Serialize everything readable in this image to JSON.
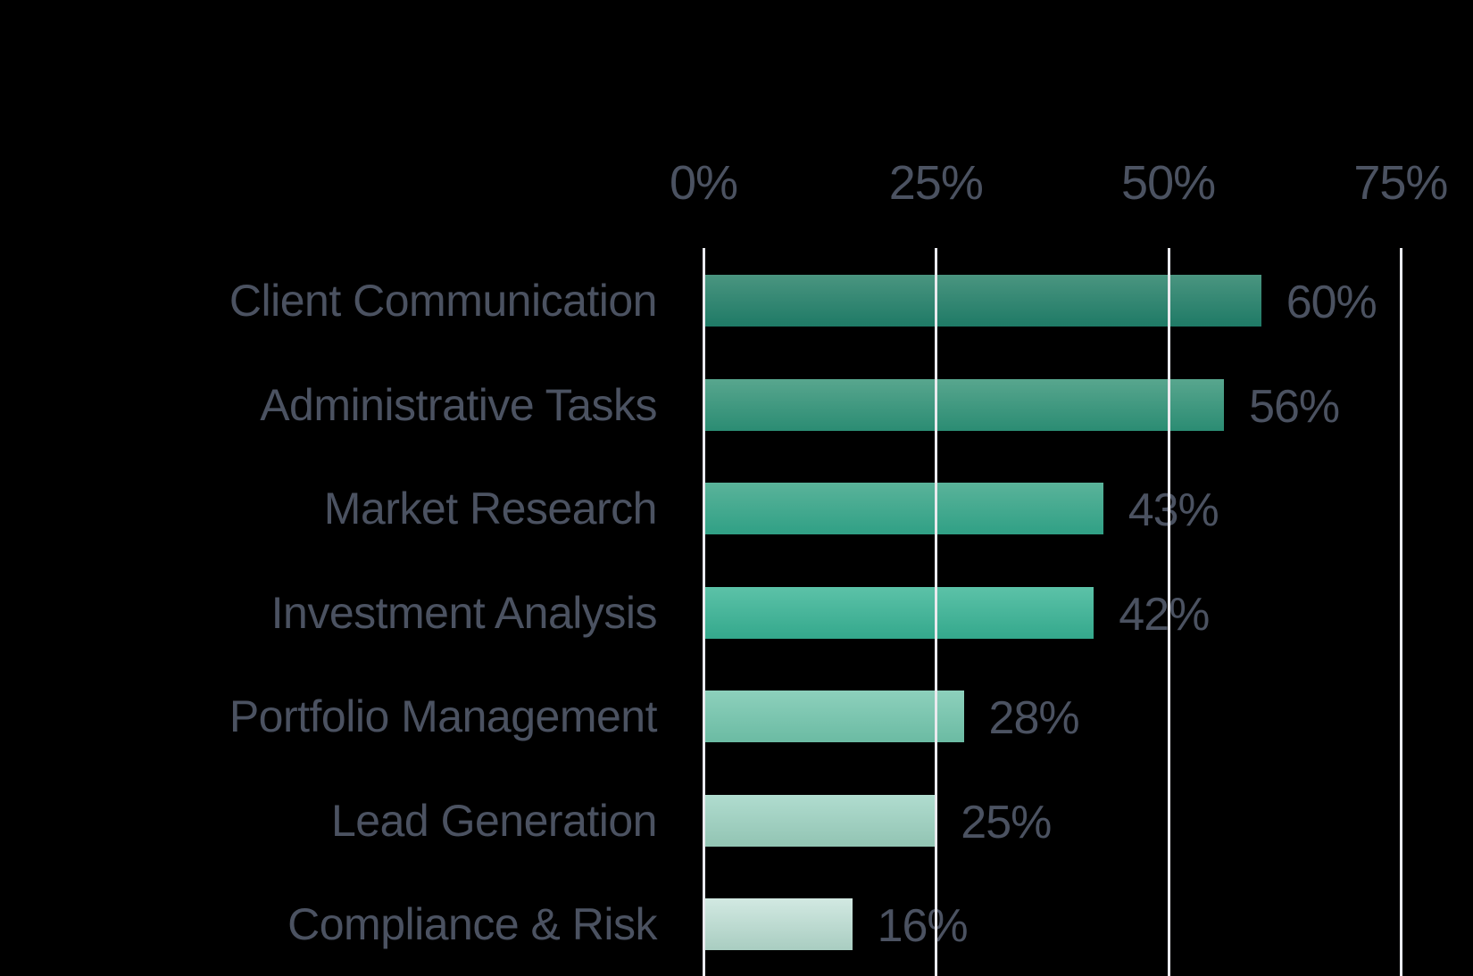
{
  "chart_data": {
    "type": "bar",
    "orientation": "horizontal",
    "title": "",
    "xlabel": "",
    "ylabel": "",
    "categories": [
      "Client Communication",
      "Administrative Tasks",
      "Market Research",
      "Investment Analysis",
      "Portfolio Management",
      "Lead Generation",
      "Compliance & Risk"
    ],
    "values": [
      60,
      56,
      43,
      42,
      28,
      25,
      16
    ],
    "value_labels": [
      "60%",
      "56%",
      "43%",
      "42%",
      "28%",
      "25%",
      "16%"
    ],
    "xlim": [
      0,
      75
    ],
    "x_ticks": [
      0,
      25,
      50,
      75
    ],
    "x_tick_labels": [
      "0%",
      "25%",
      "50%",
      "75%"
    ],
    "x_axis_position": "top",
    "grid": true,
    "legend": null,
    "bar_colors": [
      {
        "top": "#4a9580",
        "bottom": "#1f7a66"
      },
      {
        "top": "#58a68e",
        "bottom": "#2b8c73"
      },
      {
        "top": "#5ab39a",
        "bottom": "#30a085"
      },
      {
        "top": "#5cc2a8",
        "bottom": "#34a88c"
      },
      {
        "top": "#8dd0bc",
        "bottom": "#6bbba3"
      },
      {
        "top": "#b0dccf",
        "bottom": "#92c4b3"
      },
      {
        "top": "#d2e9e2",
        "bottom": "#a9cdc1"
      }
    ]
  },
  "colors": {
    "background": "#000000",
    "text": "#4b5261",
    "gridline": "#e9eaee"
  }
}
